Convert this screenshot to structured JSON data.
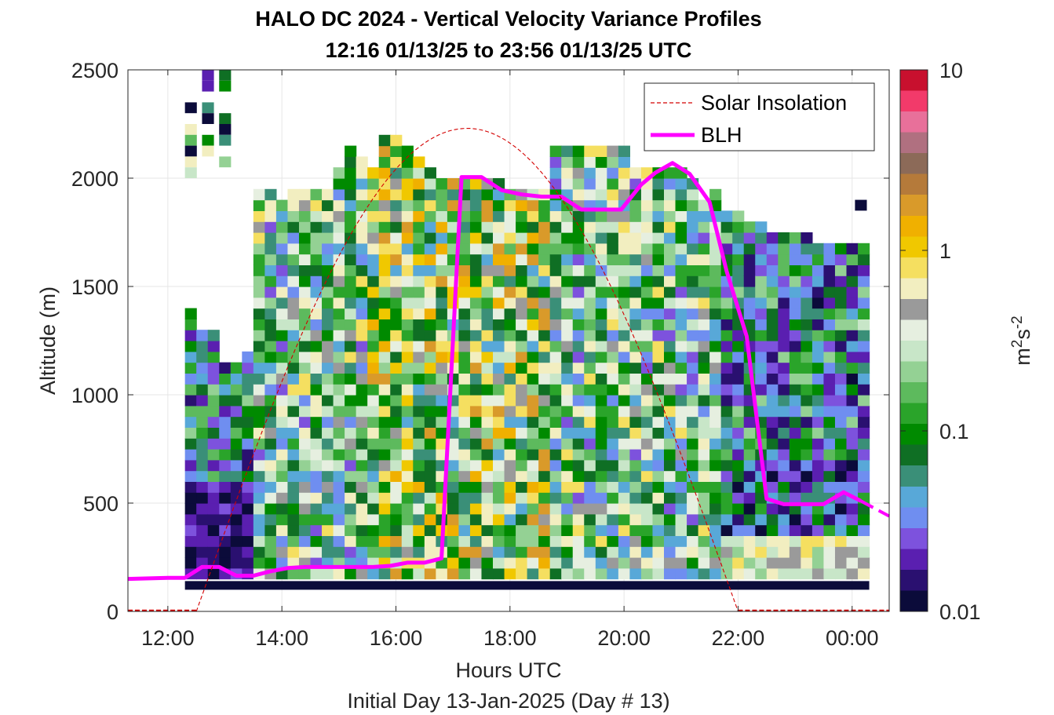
{
  "chart_data": {
    "type": "heatmap",
    "title": "HALO DC 2024 - Vertical Velocity Variance Profiles",
    "subtitle": "12:16 01/13/25 to 23:56 01/13/25  UTC",
    "xlabel": "Hours UTC",
    "xlabel2": "Initial Day 13-Jan-2025 (Day # 13)",
    "ylabel": "Altitude (m)",
    "xlim_hours": [
      11.3,
      24.65
    ],
    "ylim": [
      0,
      2500
    ],
    "x_ticks": [
      {
        "hour": 12,
        "label": "12:00"
      },
      {
        "hour": 14,
        "label": "14:00"
      },
      {
        "hour": 16,
        "label": "16:00"
      },
      {
        "hour": 18,
        "label": "18:00"
      },
      {
        "hour": 20,
        "label": "20:00"
      },
      {
        "hour": 22,
        "label": "22:00"
      },
      {
        "hour": 24,
        "label": "00:00"
      }
    ],
    "y_ticks": [
      {
        "value": 0,
        "label": "0"
      },
      {
        "value": 500,
        "label": "500"
      },
      {
        "value": 1000,
        "label": "1000"
      },
      {
        "value": 1500,
        "label": "1500"
      },
      {
        "value": 2000,
        "label": "2000"
      },
      {
        "value": 2500,
        "label": "2500"
      }
    ],
    "grid": true,
    "colorbar": {
      "label_base": "m",
      "label_sup1": "2",
      "label_mid": "s",
      "label_sup2": "-2",
      "scale": "log",
      "range": [
        0.01,
        10
      ],
      "ticks": [
        {
          "value": 0.01,
          "label": "0.01"
        },
        {
          "value": 0.1,
          "label": "0.1"
        },
        {
          "value": 1,
          "label": "1"
        },
        {
          "value": 10,
          "label": "10"
        }
      ],
      "colors": [
        "#0b0b3a",
        "#2a1070",
        "#5a1fb0",
        "#7d52dd",
        "#6f8ef0",
        "#58a8d8",
        "#3a8f78",
        "#0f6f24",
        "#008a00",
        "#2aa42a",
        "#5dba5d",
        "#94d194",
        "#c8e6c8",
        "#e6efe0",
        "#9a9a9a",
        "#f2eec0",
        "#f5df60",
        "#f0c800",
        "#f0b000",
        "#d99a2a",
        "#b57a3a",
        "#8c6a58",
        "#b07080",
        "#e8709a",
        "#f23a6a",
        "#c8102e"
      ]
    },
    "legend": {
      "placement": "top-right",
      "entries": [
        {
          "name": "Solar Insolation",
          "style": "dashed",
          "color": "#d40000"
        },
        {
          "name": "BLH",
          "style": "solid",
          "color": "#ff00ff"
        }
      ]
    },
    "series": [
      {
        "name": "BLH",
        "color": "#ff00ff",
        "x_hours": [
          11.3,
          12.0,
          12.3,
          12.6,
          12.9,
          13.2,
          13.5,
          13.8,
          14.1,
          14.4,
          14.7,
          15.0,
          15.3,
          15.6,
          15.9,
          16.2,
          16.5,
          16.8,
          17.15,
          17.5,
          17.85,
          18.2,
          18.55,
          18.9,
          19.25,
          19.6,
          19.95,
          20.3,
          20.55,
          20.85,
          21.15,
          21.5,
          21.8,
          22.15,
          22.5,
          22.8,
          23.15,
          23.5,
          23.85,
          24.15
        ],
        "y": [
          150,
          155,
          155,
          205,
          205,
          165,
          165,
          185,
          200,
          205,
          205,
          205,
          205,
          205,
          210,
          225,
          225,
          245,
          2005,
          2005,
          1945,
          1925,
          1915,
          1915,
          1855,
          1855,
          1855,
          1970,
          2025,
          2070,
          2020,
          1890,
          1570,
          1270,
          520,
          495,
          495,
          495,
          550,
          510
        ]
      },
      {
        "name": "BLH (dashed continuation)",
        "color": "#ff00ff",
        "x_hours": [
          24.15,
          24.65
        ],
        "y": [
          510,
          440
        ]
      },
      {
        "name": "Solar Insolation",
        "color": "#d40000",
        "sunrise_hour": 12.5,
        "peak_hour": 17.2,
        "sunset_hour": 22.0,
        "peak_altitude": 2230
      }
    ],
    "heatmap": {
      "x_start_hour": 12.3,
      "x_step_hours": 0.2,
      "y_step_m": 50,
      "bottom_band": {
        "y0": 100,
        "y1": 140,
        "hour_start": 12.3,
        "hour_end": 24.3,
        "value": 0.01
      },
      "columns": [
        {
          "top": 1400,
          "bottom": 150,
          "pattern": "low"
        },
        {
          "top": 1300,
          "bottom": 150,
          "pattern": "low"
        },
        {
          "top": 1300,
          "bottom": 150,
          "pattern": "low"
        },
        {
          "top": 1150,
          "bottom": 150,
          "pattern": "low"
        },
        {
          "top": 1150,
          "bottom": 150,
          "pattern": "low"
        },
        {
          "top": 1200,
          "bottom": 150,
          "pattern": "low"
        },
        {
          "top": 1950,
          "bottom": 150,
          "pattern": "mixed"
        },
        {
          "top": 1950,
          "bottom": 150,
          "pattern": "mixed"
        },
        {
          "top": 1900,
          "bottom": 150,
          "pattern": "mixed"
        },
        {
          "top": 1950,
          "bottom": 150,
          "pattern": "mixed"
        },
        {
          "top": 1950,
          "bottom": 150,
          "pattern": "mixed"
        },
        {
          "top": 1950,
          "bottom": 150,
          "pattern": "mixed"
        },
        {
          "top": 1950,
          "bottom": 150,
          "pattern": "mixed"
        },
        {
          "top": 2050,
          "bottom": 150,
          "pattern": "mixed"
        },
        {
          "top": 2150,
          "bottom": 150,
          "pattern": "mixed"
        },
        {
          "top": 2100,
          "bottom": 150,
          "pattern": "mixed"
        },
        {
          "top": 2050,
          "bottom": 150,
          "pattern": "hi"
        },
        {
          "top": 2200,
          "bottom": 150,
          "pattern": "hi"
        },
        {
          "top": 2200,
          "bottom": 150,
          "pattern": "hi"
        },
        {
          "top": 2150,
          "bottom": 150,
          "pattern": "hi"
        },
        {
          "top": 2100,
          "bottom": 150,
          "pattern": "hi"
        },
        {
          "top": 2050,
          "bottom": 150,
          "pattern": "hi"
        },
        {
          "top": 2000,
          "bottom": 150,
          "pattern": "hi"
        },
        {
          "top": 2000,
          "bottom": 150,
          "pattern": "hi"
        },
        {
          "top": 2000,
          "bottom": 150,
          "pattern": "hi"
        },
        {
          "top": 2000,
          "bottom": 150,
          "pattern": "hi"
        },
        {
          "top": 2000,
          "bottom": 150,
          "pattern": "hi"
        },
        {
          "top": 2000,
          "bottom": 150,
          "pattern": "hi"
        },
        {
          "top": 1950,
          "bottom": 150,
          "pattern": "hi"
        },
        {
          "top": 1950,
          "bottom": 150,
          "pattern": "hi"
        },
        {
          "top": 1950,
          "bottom": 150,
          "pattern": "hi"
        },
        {
          "top": 1950,
          "bottom": 150,
          "pattern": "hi"
        },
        {
          "top": 2150,
          "bottom": 150,
          "pattern": "mixed"
        },
        {
          "top": 2150,
          "bottom": 150,
          "pattern": "mixed"
        },
        {
          "top": 2150,
          "bottom": 150,
          "pattern": "mixed"
        },
        {
          "top": 2150,
          "bottom": 150,
          "pattern": "mixed"
        },
        {
          "top": 2150,
          "bottom": 150,
          "pattern": "mixed"
        },
        {
          "top": 2150,
          "bottom": 150,
          "pattern": "mixed"
        },
        {
          "top": 2150,
          "bottom": 150,
          "pattern": "mixed"
        },
        {
          "top": 2050,
          "bottom": 150,
          "pattern": "mixed"
        },
        {
          "top": 2050,
          "bottom": 150,
          "pattern": "mixed"
        },
        {
          "top": 2050,
          "bottom": 150,
          "pattern": "mixed"
        },
        {
          "top": 2050,
          "bottom": 150,
          "pattern": "mixed"
        },
        {
          "top": 2050,
          "bottom": 150,
          "pattern": "mixed"
        },
        {
          "top": 2000,
          "bottom": 150,
          "pattern": "mixed"
        },
        {
          "top": 1900,
          "bottom": 150,
          "pattern": "mixed"
        },
        {
          "top": 1950,
          "bottom": 150,
          "pattern": "mixed"
        },
        {
          "top": 1850,
          "bottom": 150,
          "pattern": "late"
        },
        {
          "top": 1850,
          "bottom": 150,
          "pattern": "late"
        },
        {
          "top": 1800,
          "bottom": 150,
          "pattern": "late"
        },
        {
          "top": 1800,
          "bottom": 150,
          "pattern": "late"
        },
        {
          "top": 1750,
          "bottom": 150,
          "pattern": "late"
        },
        {
          "top": 1750,
          "bottom": 150,
          "pattern": "late"
        },
        {
          "top": 1750,
          "bottom": 150,
          "pattern": "late"
        },
        {
          "top": 1750,
          "bottom": 150,
          "pattern": "late"
        },
        {
          "top": 1700,
          "bottom": 150,
          "pattern": "late"
        },
        {
          "top": 1700,
          "bottom": 150,
          "pattern": "late"
        },
        {
          "top": 1700,
          "bottom": 150,
          "pattern": "late"
        },
        {
          "top": 1700,
          "bottom": 150,
          "pattern": "late"
        },
        {
          "top": 1700,
          "bottom": 150,
          "pattern": "late"
        }
      ],
      "sparse_top_cells": [
        {
          "hour": 12.6,
          "alt": 2475,
          "value": 0.02
        },
        {
          "hour": 12.9,
          "alt": 2475,
          "value": 0.08
        },
        {
          "hour": 12.6,
          "alt": 2425,
          "value": 0.02
        },
        {
          "hour": 12.9,
          "alt": 2425,
          "value": 0.1
        },
        {
          "hour": 12.3,
          "alt": 2325,
          "value": 0.01
        },
        {
          "hour": 12.6,
          "alt": 2325,
          "value": 0.05
        },
        {
          "hour": 12.9,
          "alt": 2275,
          "value": 0.08
        },
        {
          "hour": 12.6,
          "alt": 2275,
          "value": 0.01
        },
        {
          "hour": 12.3,
          "alt": 2225,
          "value": 0.6
        },
        {
          "hour": 12.9,
          "alt": 2225,
          "value": 0.01
        },
        {
          "hour": 12.3,
          "alt": 2175,
          "value": 0.15
        },
        {
          "hour": 12.6,
          "alt": 2175,
          "value": 0.1
        },
        {
          "hour": 12.9,
          "alt": 2175,
          "value": 0.06
        },
        {
          "hour": 12.3,
          "alt": 2125,
          "value": 0.01
        },
        {
          "hour": 12.6,
          "alt": 2125,
          "value": 0.6
        },
        {
          "hour": 12.3,
          "alt": 2075,
          "value": 0.6
        },
        {
          "hour": 12.9,
          "alt": 2075,
          "value": 0.2
        },
        {
          "hour": 12.3,
          "alt": 2025,
          "value": 0.25
        },
        {
          "hour": 24.05,
          "alt": 1875,
          "value": 0.01
        }
      ]
    }
  }
}
